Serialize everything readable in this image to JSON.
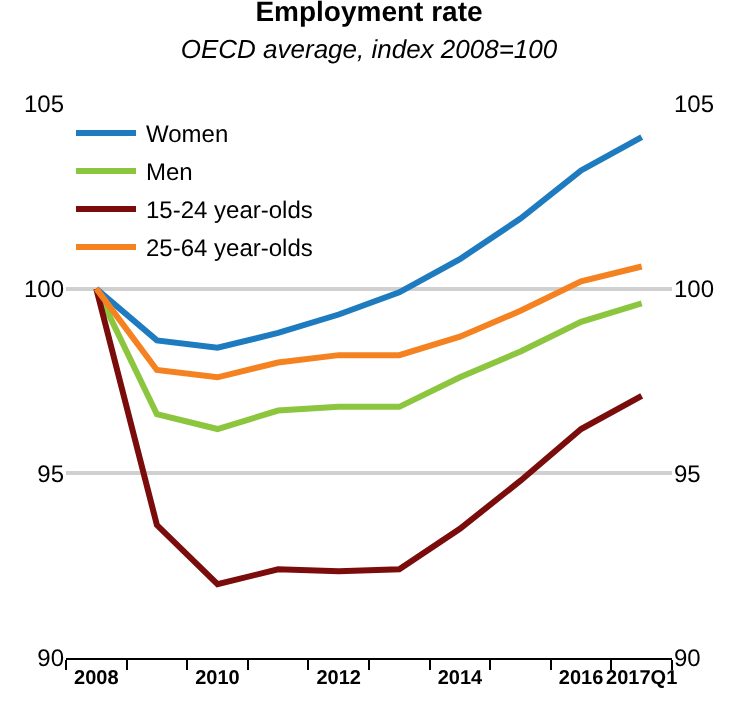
{
  "chart_data": {
    "type": "line",
    "title": "Employment rate",
    "subtitle": "OECD average, index 2008=100",
    "categories": [
      "2008",
      null,
      "2010",
      null,
      "2012",
      null,
      "2014",
      null,
      "2016",
      "2017Q1"
    ],
    "series": [
      {
        "name": "Women",
        "color": "#1f7bc0",
        "values": [
          100,
          98.6,
          98.4,
          98.8,
          99.3,
          99.9,
          100.8,
          101.9,
          103.2,
          104.1
        ]
      },
      {
        "name": "Men",
        "color": "#8cc63f",
        "values": [
          100,
          96.6,
          96.2,
          96.7,
          96.8,
          96.8,
          97.6,
          98.3,
          99.1,
          99.6
        ]
      },
      {
        "name": "15-24 year-olds",
        "color": "#7b0c0c",
        "values": [
          100,
          93.6,
          92.0,
          92.4,
          92.35,
          92.4,
          93.5,
          94.8,
          96.2,
          97.1
        ]
      },
      {
        "name": "25-64 year-olds",
        "color": "#f58220",
        "values": [
          100,
          97.8,
          97.6,
          98.0,
          98.2,
          98.2,
          98.7,
          99.4,
          100.2,
          100.6
        ]
      }
    ],
    "ylim": [
      90,
      105
    ],
    "yticks": [
      90,
      95,
      100,
      105
    ],
    "y2lim": [
      90,
      105
    ],
    "y2ticks": [
      90,
      95,
      100,
      105
    ],
    "grid": "y",
    "legend": "top left",
    "marker": "none",
    "line_style": "solid"
  }
}
